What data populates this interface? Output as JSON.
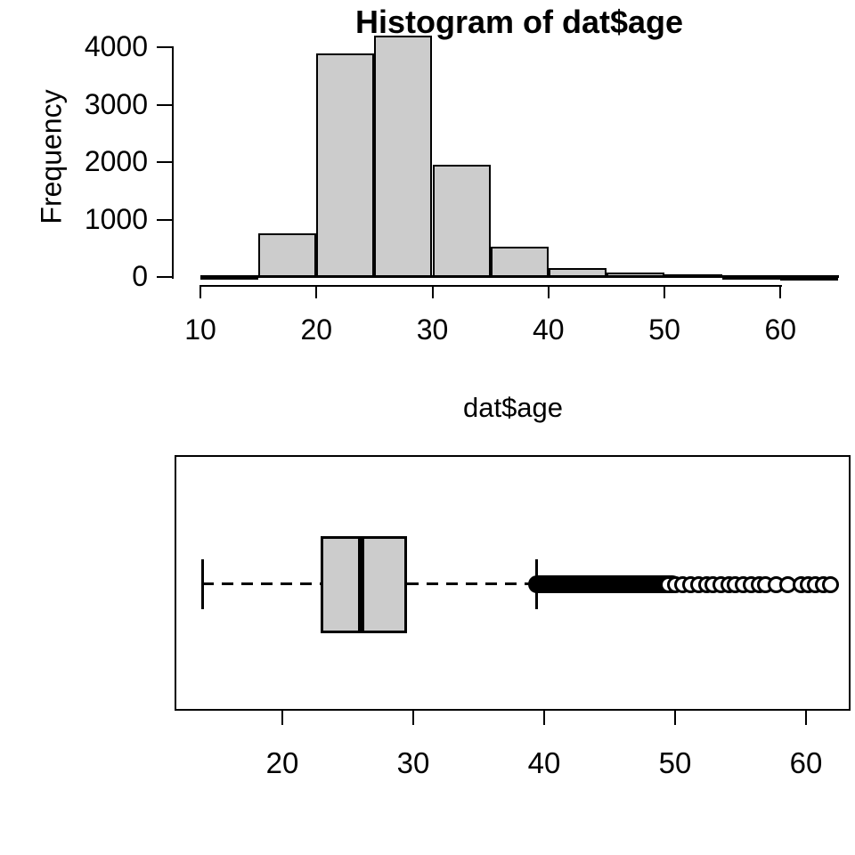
{
  "figure": {
    "background": "#ffffff",
    "bar_fill": "#cccccc",
    "line_color": "#000000"
  },
  "histogram": {
    "title": "Histogram of dat$age",
    "ylabel": "Frequency",
    "xlabel": "dat$age"
  },
  "chart_data": [
    {
      "type": "bar",
      "subtype": "histogram",
      "title": "Histogram of dat$age",
      "xlabel": "dat$age",
      "ylabel": "Frequency",
      "bin_breaks": [
        10,
        15,
        20,
        25,
        30,
        35,
        40,
        45,
        50,
        55,
        60,
        65
      ],
      "counts": [
        20,
        760,
        3890,
        4200,
        1960,
        530,
        150,
        75,
        50,
        20,
        5
      ],
      "x_ticks": [
        10,
        20,
        30,
        40,
        50,
        60
      ],
      "y_ticks": [
        0,
        1000,
        2000,
        3000,
        4000
      ],
      "xlim": [
        10,
        65
      ],
      "ylim": [
        0,
        4200
      ],
      "grid": false,
      "bar_fill": "#cccccc",
      "bar_border": "#000000"
    },
    {
      "type": "boxplot",
      "orientation": "horizontal",
      "variable": "dat$age",
      "stats": {
        "lower_whisker": 13.9,
        "q1": 22.9,
        "median": 26.0,
        "q3": 29.5,
        "upper_whisker": 39.4
      },
      "outlier_band": [
        38.8,
        50.5
      ],
      "outlier_points": [
        49.5,
        50.0,
        50.6,
        51.2,
        51.8,
        52.4,
        52.9,
        53.5,
        54.1,
        54.6,
        55.2,
        55.8,
        56.4,
        56.9,
        57.7,
        58.6,
        59.6,
        60.2,
        60.7,
        61.3,
        61.9
      ],
      "x_ticks": [
        20,
        30,
        40,
        50,
        60
      ],
      "xlim": [
        13,
        63
      ],
      "grid": false
    }
  ]
}
